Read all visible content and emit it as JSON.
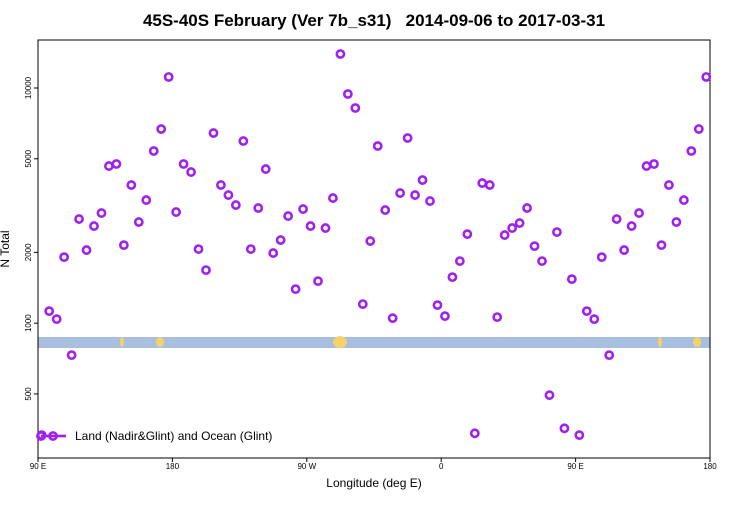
{
  "chart_data": {
    "type": "scatter",
    "title": "45S-40S February (Ver 7b_s31)   2014-09-06 to 2017-03-31",
    "x_label": "Longitude (deg E)",
    "y_label": "N Total",
    "log_y": true,
    "legend_position": "bottom-left",
    "xlim": [
      90,
      540
    ],
    "xticks": [
      {
        "value": 90,
        "label": "90 E"
      },
      180,
      {
        "value": 270,
        "label": "90 W"
      },
      {
        "value": 360,
        "label": "0"
      },
      {
        "value": 450,
        "label": "90 E"
      },
      {
        "value": 540,
        "label": "180"
      }
    ],
    "ylim": [
      267,
      16000
    ],
    "yticks": [
      500,
      1000,
      2000,
      5000,
      10000
    ],
    "series": [
      {
        "name": "Land (Nadir&Glint) and Ocean (Glint)",
        "color": "#a020f0",
        "x": [
          92.5,
          97.5,
          102.5,
          107.5,
          112.5,
          117.5,
          122.5,
          127.5,
          132.5,
          137.5,
          142.5,
          147.5,
          152.5,
          157.5,
          162.5,
          167.5,
          172.5,
          177.5,
          182.5,
          187.5,
          192.5,
          197.5,
          202.5,
          207.5,
          212.5,
          217.5,
          222.5,
          227.5,
          232.5,
          237.5,
          242.5,
          247.5,
          252.5,
          257.5,
          262.5,
          267.5,
          272.5,
          277.5,
          282.5,
          287.5,
          292.5,
          297.5,
          302.5,
          307.5,
          312.5,
          317.5,
          322.5,
          327.5,
          332.5,
          337.5,
          342.5,
          347.5,
          352.5,
          357.5,
          362.5,
          367.5,
          372.5,
          377.5,
          382.5,
          387.5,
          392.5,
          397.5,
          402.5,
          407.5,
          412.5,
          417.5,
          422.5,
          427.5,
          432.5,
          437.5,
          442.5,
          447.5,
          452.5,
          457.5,
          462.5,
          467.5,
          472.5,
          477.5,
          482.5,
          487.5,
          492.5,
          497.5,
          502.5,
          507.5,
          512.5,
          517.5,
          522.5,
          527.5,
          532.5,
          537.5
        ],
        "values": [
          334,
          1125,
          1040,
          1909,
          731,
          2771,
          2045,
          2587,
          2938,
          4656,
          4750,
          2147,
          3866,
          2691,
          3337,
          5395,
          6690,
          11140,
          2967,
          4750,
          4390,
          2065,
          1681,
          6433,
          3866,
          3505,
          3178,
          5950,
          2065,
          3087,
          4521,
          1986,
          2256,
          2853,
          1395,
          3056,
          2587,
          1509,
          2537,
          3403,
          13950,
          9430,
          8220,
          1205,
          2234,
          5666,
          3026,
          1050,
          3575,
          6128,
          3505,
          4059,
          3305,
          1193,
          1071,
          1569,
          1836,
          2391,
          340,
          3942,
          3866,
          1061,
          2369,
          2537,
          2665,
          3087,
          2126,
          1836,
          494,
          2439,
          357,
          1539,
          334,
          1125,
          1040,
          1909,
          731,
          2771,
          2045,
          2587,
          2938,
          4656,
          4750,
          2147,
          3866,
          2691,
          3337,
          5395,
          6690,
          11140
        ]
      }
    ]
  }
}
